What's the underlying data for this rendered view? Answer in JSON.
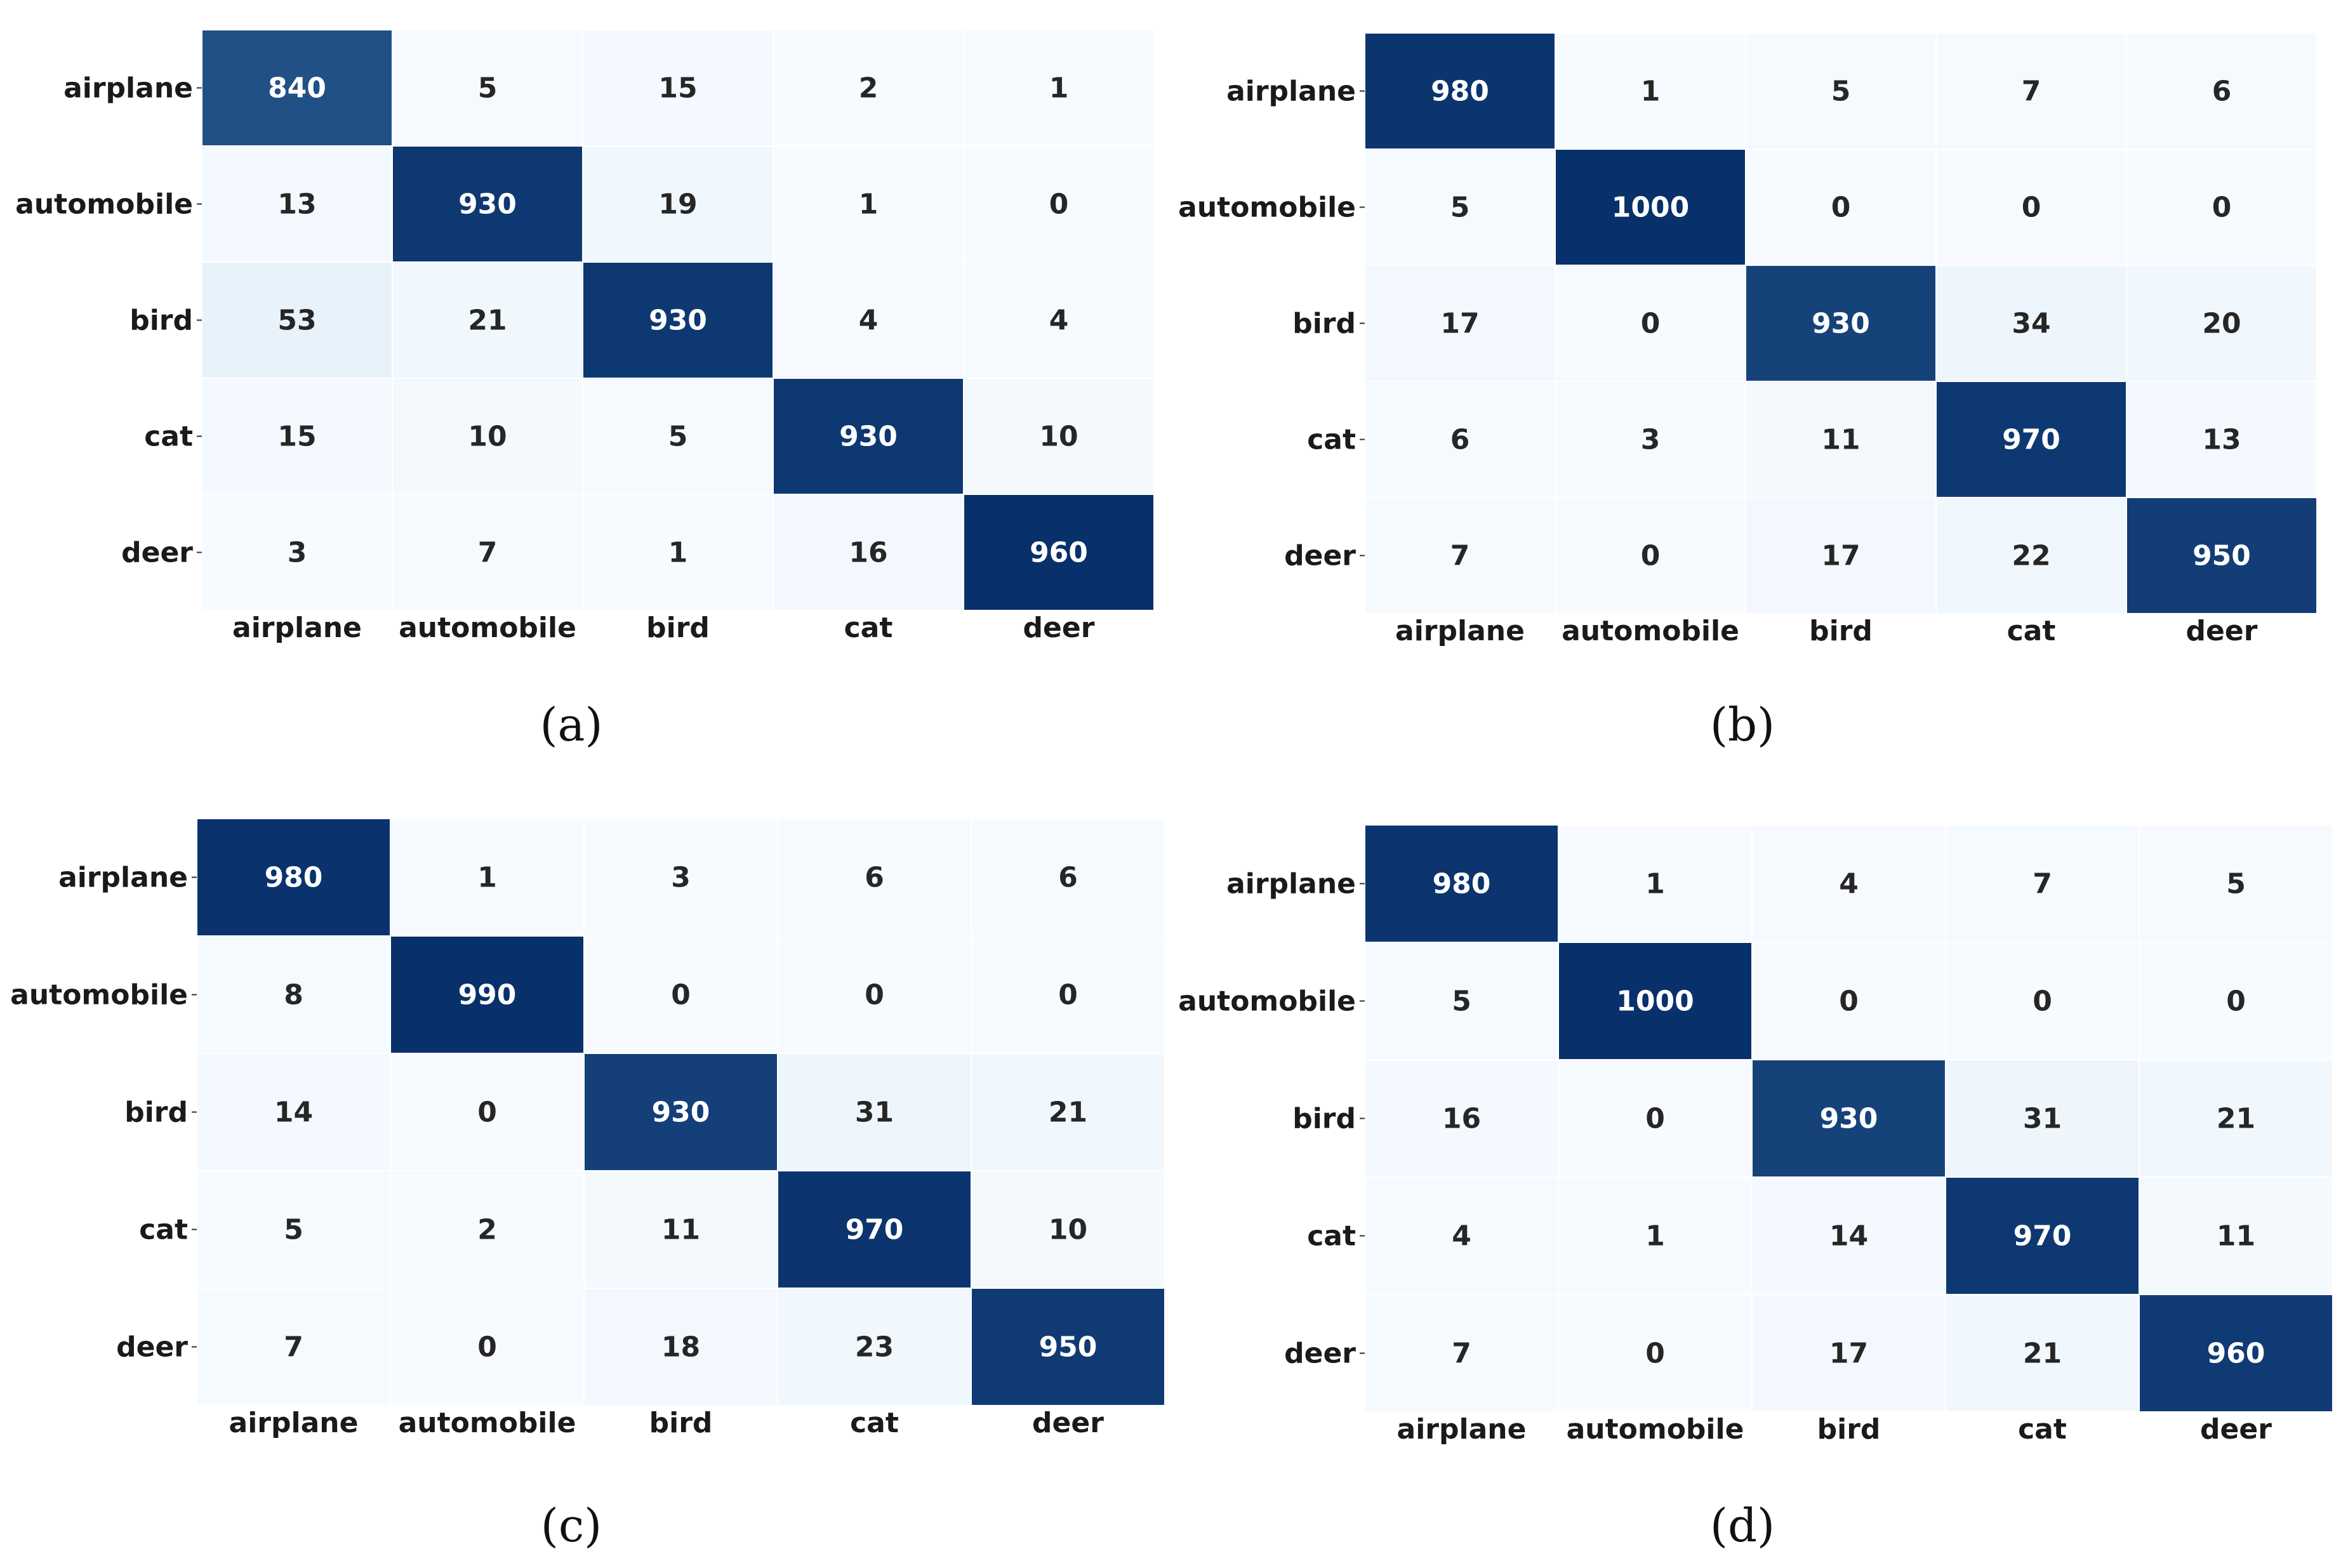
{
  "colors": {
    "cmap_low": "#f7fbff",
    "cmap_mid": "#6baed6",
    "cmap_high": "#08306b",
    "text_dark": "#262626",
    "text_light": "#ffffff"
  },
  "chart_data": [
    {
      "type": "heatmap",
      "caption": "(a)",
      "x_categories": [
        "airplane",
        "automobile",
        "bird",
        "cat",
        "deer"
      ],
      "y_categories": [
        "airplane",
        "automobile",
        "bird",
        "cat",
        "deer"
      ],
      "values": [
        [
          840,
          5,
          15,
          2,
          1
        ],
        [
          13,
          930,
          19,
          1,
          0
        ],
        [
          53,
          21,
          930,
          4,
          4
        ],
        [
          15,
          10,
          5,
          930,
          10
        ],
        [
          3,
          7,
          1,
          16,
          960
        ]
      ],
      "vmin": 0,
      "vmax": 960,
      "colormap": "Blues",
      "colorbar": false
    },
    {
      "type": "heatmap",
      "caption": "(b)",
      "x_categories": [
        "airplane",
        "automobile",
        "bird",
        "cat",
        "deer"
      ],
      "y_categories": [
        "airplane",
        "automobile",
        "bird",
        "cat",
        "deer"
      ],
      "values": [
        [
          980,
          1,
          5,
          7,
          6
        ],
        [
          5,
          1000,
          0,
          0,
          0
        ],
        [
          17,
          0,
          930,
          34,
          20
        ],
        [
          6,
          3,
          11,
          970,
          13
        ],
        [
          7,
          0,
          17,
          22,
          950
        ]
      ],
      "vmin": 0,
      "vmax": 1000,
      "colormap": "Blues",
      "colorbar": false
    },
    {
      "type": "heatmap",
      "caption": "(c)",
      "x_categories": [
        "airplane",
        "automobile",
        "bird",
        "cat",
        "deer"
      ],
      "y_categories": [
        "airplane",
        "automobile",
        "bird",
        "cat",
        "deer"
      ],
      "values": [
        [
          980,
          1,
          3,
          6,
          6
        ],
        [
          8,
          990,
          0,
          0,
          0
        ],
        [
          14,
          0,
          930,
          31,
          21
        ],
        [
          5,
          2,
          11,
          970,
          10
        ],
        [
          7,
          0,
          18,
          23,
          950
        ]
      ],
      "vmin": 0,
      "vmax": 990,
      "colormap": "Blues",
      "colorbar": false
    },
    {
      "type": "heatmap",
      "caption": "(d)",
      "x_categories": [
        "airplane",
        "automobile",
        "bird",
        "cat",
        "deer"
      ],
      "y_categories": [
        "airplane",
        "automobile",
        "bird",
        "cat",
        "deer"
      ],
      "values": [
        [
          980,
          1,
          4,
          7,
          5
        ],
        [
          5,
          1000,
          0,
          0,
          0
        ],
        [
          16,
          0,
          930,
          31,
          21
        ],
        [
          4,
          1,
          14,
          970,
          11
        ],
        [
          7,
          0,
          17,
          21,
          960
        ]
      ],
      "vmin": 0,
      "vmax": 1000,
      "colormap": "Blues",
      "colorbar": false
    }
  ]
}
